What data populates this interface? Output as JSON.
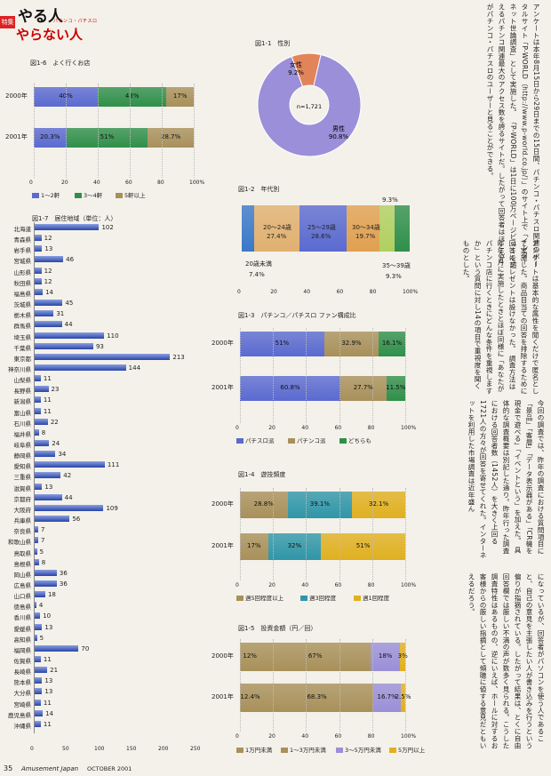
{
  "header": {
    "box": "特集",
    "title1": "やる人",
    "title2": "やらない人",
    "subtitle": "パチンコ・パチスロ"
  },
  "colors": {
    "blue": "#5a6ad0",
    "green": "#2f8f4a",
    "tan": "#a8905a",
    "red": "#e2845a",
    "purple": "#9a8fd8",
    "yellow": "#e0b020",
    "teal": "#2f96a8"
  },
  "fig16": {
    "title": "図1-6　よく行くお店",
    "rows": [
      {
        "label": "2000年",
        "values": [
          40,
          43,
          17
        ],
        "texts": [
          "40%",
          "43%",
          "17%"
        ]
      },
      {
        "label": "2001年",
        "values": [
          20.3,
          51,
          28.7
        ],
        "texts": [
          "20.3%",
          "51%",
          "28.7%"
        ]
      }
    ],
    "ticks": [
      "0",
      "20",
      "40",
      "60",
      "80",
      "100%"
    ],
    "legend": [
      "1〜2軒",
      "3〜4軒",
      "5軒以上"
    ]
  },
  "fig11": {
    "title": "図1-1　性別",
    "slices": [
      {
        "label": "女性",
        "value_text": "9.2%",
        "value": 9.2
      },
      {
        "label": "男性",
        "value_text": "90.8%",
        "value": 90.8
      }
    ],
    "n": "n=1,721"
  },
  "fig12": {
    "title": "図1-2　年代別",
    "segments": [
      {
        "label": "20歳未満",
        "value": 7.4,
        "text": "7.4%"
      },
      {
        "label": "20〜24歳",
        "value": 27.4,
        "text": "27.4%"
      },
      {
        "label": "25〜29歳",
        "value": 28.6,
        "text": "28.6%"
      },
      {
        "label": "30〜34歳",
        "value": 19.7,
        "text": "19.7%"
      },
      {
        "label": "35〜39歳",
        "value": 9.3,
        "text": "9.3%"
      },
      {
        "label": "",
        "value": 9.3,
        "text": "9.3%"
      }
    ],
    "ticks": [
      "0",
      "20",
      "40",
      "60",
      "80",
      "100%"
    ]
  },
  "fig13": {
    "title": "図1-3　パチンコ／パチスロ ファン構成比",
    "rows": [
      {
        "label": "2000年",
        "values": [
          51,
          32.9,
          16.1
        ],
        "texts": [
          "51%",
          "32.9%",
          "16.1%"
        ]
      },
      {
        "label": "2001年",
        "values": [
          60.8,
          27.7,
          11.5
        ],
        "texts": [
          "60.8%",
          "27.7%",
          "11.5%"
        ]
      }
    ],
    "ticks": [
      "0",
      "20",
      "40",
      "60",
      "80",
      "100%"
    ],
    "legend": [
      "パチスロ派",
      "パチンコ派",
      "どちらも"
    ]
  },
  "fig14": {
    "title": "図1-4　遊技頻度",
    "rows": [
      {
        "label": "2000年",
        "values": [
          28.8,
          39.1,
          32.1
        ],
        "texts": [
          "28.8%",
          "39.1%",
          "32.1%"
        ]
      },
      {
        "label": "2001年",
        "values": [
          17,
          32,
          51
        ],
        "texts": [
          "17%",
          "32%",
          "51%"
        ]
      }
    ],
    "ticks": [
      "0",
      "20",
      "40",
      "60",
      "80",
      "100%"
    ],
    "legend": [
      "週5回程度以上",
      "週3回程度",
      "週1回程度"
    ]
  },
  "fig15": {
    "title": "図1-5　投資金額（円／回）",
    "rows": [
      {
        "label": "2000年",
        "values": [
          12,
          67,
          18,
          3
        ],
        "texts": [
          "12%",
          "67%",
          "18%",
          "3%"
        ]
      },
      {
        "label": "2001年",
        "values": [
          12.4,
          68.3,
          16.7,
          2.5
        ],
        "texts": [
          "12.4%",
          "68.3%",
          "16.7%",
          "2.5%"
        ]
      }
    ],
    "ticks": [
      "0",
      "20",
      "40",
      "60",
      "80",
      "100%"
    ],
    "legend": [
      "1万円未満",
      "1〜3万円未満",
      "3〜5万円未満",
      "5万円以上"
    ]
  },
  "fig17": {
    "title": "図1-7　居住地域（単位：人）",
    "prefs": [
      "北海道",
      "青森県",
      "岩手県",
      "宮城県",
      "山形県",
      "秋田県",
      "福島県",
      "茨城県",
      "栃木県",
      "群馬県",
      "埼玉県",
      "千葉県",
      "東京都",
      "神奈川県",
      "山梨県",
      "長野県",
      "新潟県",
      "富山県",
      "石川県",
      "福井県",
      "岐阜県",
      "静岡県",
      "愛知県",
      "三重県",
      "滋賀県",
      "京都府",
      "大阪府",
      "兵庫県",
      "奈良県",
      "和歌山県",
      "鳥取県",
      "島根県",
      "岡山県",
      "広島県",
      "山口県",
      "徳島県",
      "香川県",
      "愛媛県",
      "高知県",
      "福岡県",
      "佐賀県",
      "長崎県",
      "熊本県",
      "大分県",
      "宮崎県",
      "鹿児島県",
      "沖縄県"
    ],
    "values": [
      102,
      12,
      13,
      46,
      12,
      12,
      14,
      45,
      31,
      44,
      110,
      93,
      213,
      144,
      11,
      23,
      11,
      11,
      22,
      8,
      24,
      34,
      111,
      42,
      13,
      44,
      109,
      56,
      7,
      7,
      5,
      8,
      36,
      36,
      18,
      4,
      10,
      13,
      5,
      70,
      11,
      21,
      13,
      13,
      11,
      14,
      11
    ],
    "ticks": [
      "0",
      "50",
      "100",
      "150",
      "200",
      "250"
    ]
  },
  "body_text": [
    "アンケートは本年8月15日から29日までの15日間、パチンコ・パチスロ関連のポータルサイト「P-WORLD（http://www.p-world.co.jp/）」のサイト上で「インターネット世論調査」として実施した。",
    "「P-WORLD」は1日に100万ページビューを超えるパチンコ関連最大のアクセス数を誇るサイトだ。したがって回答者はほとんどがパチンコ・パチスロのユーザーと見ることができる。",
    "アンケートは基本的な属性を聞くだけで匿名として実施した。商品目当ての回答を排除するために回答にプレゼントは設けなかった。",
    "調査方法は昨年9月に実施したときとほぼ同様に「あなたがパチンコ店に行くときにどんな条件を重視しますか」という質問に対し14の項目で重視度を聞くものとした。",
    "今回の調査では、昨年の調査における質問項目に「景品」「客層」「データ表示器がある」「CR機を現金で遊べる」「イベントという」を加えた。",
    "具体的な調査概要は別記した通り。昨年行った調査における回答者数（1452人）を大きく上回る1721人の方々が回答を寄せてくれた。インターネットを利用した市場調査は近年盛ん",
    "になっているが、回答者がパソコンを使う人であること、自己の意見を主張したい人が書き込みを行うという偏りが指摘されている。したがって結果は、とくに自由回答欄では厳しい不満の声が数多く見られる。こうした調査特性はあるものの、逆にいえば、ホールに対するお客様からの厳しい指摘として傾聴に値する意見だともいえるだろう。"
  ],
  "footer": {
    "page": "35",
    "magazine": "Amusement Japan",
    "issue": "OCTOBER 2001"
  }
}
